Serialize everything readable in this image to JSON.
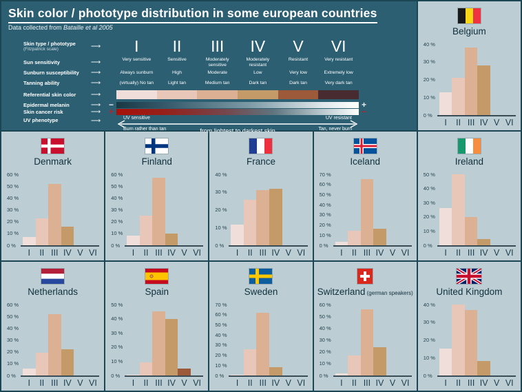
{
  "header": {
    "title": "Skin color / phototype distribution in some european countries",
    "subtitle_prefix": "Data collected from ",
    "subtitle_source": "Bataille et al 2005"
  },
  "legend": {
    "arrow_glyph": "⟶",
    "rows": [
      {
        "label": "Skin type / phototype",
        "sublabel": "(Fitzpatrick scale)"
      },
      {
        "label": "Sun sensitivity"
      },
      {
        "label": "Sunburn susceptibility"
      },
      {
        "label": "Tanning ability"
      },
      {
        "label": "Referential skin color"
      },
      {
        "label": "Epidermal melanin"
      },
      {
        "label": "Skin cancer risk"
      },
      {
        "label": "UV phenotype"
      }
    ],
    "phototypes": [
      "I",
      "II",
      "III",
      "IV",
      "V",
      "VI"
    ],
    "sun_sensitivity": [
      "Very sensitive",
      "Sensitive",
      "Moderately sensitive",
      "Moderately resistant",
      "Resistant",
      "Very resistant"
    ],
    "sunburn_susceptibility": [
      "Always sunburn",
      "High",
      "Moderate",
      "Low",
      "Very low",
      "Extremely low"
    ],
    "tanning_ability": [
      "(virtually) No tan",
      "Light tan",
      "Medium tan",
      "Dark tan",
      "Dark tan",
      "Very dark tan"
    ],
    "skin_colors": [
      "#f0dedb",
      "#e8c6b8",
      "#dcb092",
      "#c49a68",
      "#9d5a3b",
      "#472b30"
    ],
    "melanin": {
      "left_symbol": "−",
      "right_symbol": "+"
    },
    "cancer_risk": {
      "left_symbol": "+",
      "right_symbol": "−"
    },
    "uv_phenotype": {
      "left_top": "UV sensitive",
      "left_bottom": "Burn rather than tan",
      "center": "from lightest to darkest skin",
      "right_top": "UV resistant",
      "right_bottom": "Tan, never burn"
    }
  },
  "colors": {
    "page_background": "#1c4654",
    "header_background": "#2d5f73",
    "panel_background": "#bccdd4",
    "axis_line": "#3a4d57",
    "cancer_red": "#a81109"
  },
  "chart_data": [
    {
      "type": "bar",
      "country": "Belgium",
      "flag": "belgium",
      "categories": [
        "I",
        "II",
        "III",
        "IV",
        "V",
        "VI"
      ],
      "values": [
        13,
        21,
        38,
        28,
        0,
        0
      ],
      "ymax": 40,
      "ytick_step": 10,
      "ytick_suffix": " %"
    },
    {
      "type": "bar",
      "country": "Denmark",
      "flag": "denmark",
      "categories": [
        "I",
        "II",
        "III",
        "IV",
        "V",
        "VI"
      ],
      "values": [
        7,
        23,
        52,
        16,
        0,
        0
      ],
      "ymax": 60,
      "ytick_step": 10,
      "ytick_suffix": " %"
    },
    {
      "type": "bar",
      "country": "Finland",
      "flag": "finland",
      "categories": [
        "I",
        "II",
        "III",
        "IV",
        "V",
        "VI"
      ],
      "values": [
        8,
        25,
        57,
        10,
        0,
        0
      ],
      "ymax": 60,
      "ytick_step": 10,
      "ytick_suffix": " %"
    },
    {
      "type": "bar",
      "country": "France",
      "flag": "france",
      "categories": [
        "I",
        "II",
        "III",
        "IV",
        "V",
        "VI"
      ],
      "values": [
        11.5,
        25.5,
        31,
        32,
        0,
        0
      ],
      "ymax": 40,
      "ytick_step": 10,
      "ytick_suffix": " %"
    },
    {
      "type": "bar",
      "country": "Iceland",
      "flag": "iceland",
      "categories": [
        "I",
        "II",
        "III",
        "IV",
        "V",
        "VI"
      ],
      "values": [
        3.5,
        14.5,
        65,
        16,
        0,
        0
      ],
      "ymax": 70,
      "ytick_step": 10,
      "ytick_suffix": " %"
    },
    {
      "type": "bar",
      "country": "Ireland",
      "flag": "ireland",
      "categories": [
        "I",
        "II",
        "III",
        "IV",
        "V",
        "VI"
      ],
      "values": [
        26,
        50,
        20,
        4.5,
        0,
        0
      ],
      "ymax": 50,
      "ytick_step": 10,
      "ytick_suffix": " %"
    },
    {
      "type": "bar",
      "country": "Netherlands",
      "flag": "netherlands",
      "categories": [
        "I",
        "II",
        "III",
        "IV",
        "V",
        "VI"
      ],
      "values": [
        6,
        19.5,
        52,
        22,
        0,
        0
      ],
      "ymax": 60,
      "ytick_step": 10,
      "ytick_suffix": " %"
    },
    {
      "type": "bar",
      "country": "Spain",
      "flag": "spain",
      "categories": [
        "I",
        "II",
        "III",
        "IV",
        "V",
        "VI"
      ],
      "values": [
        0.5,
        9,
        45,
        40,
        5,
        0
      ],
      "ymax": 50,
      "ytick_step": 10,
      "ytick_suffix": " %"
    },
    {
      "type": "bar",
      "country": "Sweden",
      "flag": "sweden",
      "categories": [
        "I",
        "II",
        "III",
        "IV",
        "V",
        "VI"
      ],
      "values": [
        1,
        26,
        62,
        8,
        0,
        0
      ],
      "ymax": 70,
      "ytick_step": 10,
      "ytick_suffix": " %"
    },
    {
      "type": "bar",
      "country": "Switzerland",
      "note": "(german speakers)",
      "flag": "switzerland",
      "categories": [
        "I",
        "II",
        "III",
        "IV",
        "V",
        "VI"
      ],
      "values": [
        2,
        17,
        56,
        24,
        0,
        0
      ],
      "ymax": 60,
      "ytick_step": 10,
      "ytick_suffix": " %"
    },
    {
      "type": "bar",
      "country": "United Kingdom",
      "flag": "uk",
      "categories": [
        "I",
        "II",
        "III",
        "IV",
        "V",
        "VI"
      ],
      "values": [
        15,
        40,
        37,
        8,
        0,
        0
      ],
      "ymax": 40,
      "ytick_step": 10,
      "ytick_suffix": " %"
    }
  ]
}
